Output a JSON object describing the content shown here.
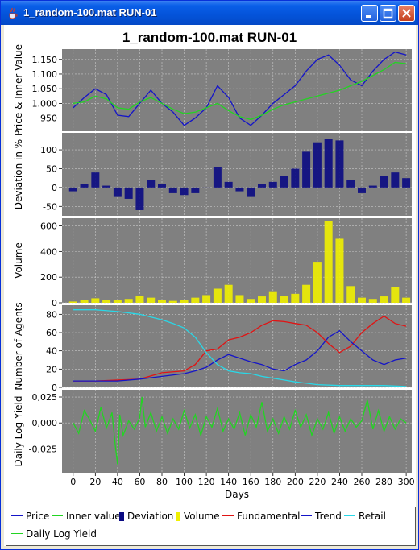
{
  "window": {
    "title": "1_random-100.mat RUN-01",
    "buttons": {
      "minimize": "minimize",
      "maximize": "maximize",
      "close": "close"
    }
  },
  "legend": [
    {
      "label": "Price",
      "color": "#1414c8",
      "kind": "line"
    },
    {
      "label": "Inner value",
      "color": "#22d422",
      "kind": "line"
    },
    {
      "label": "Deviation",
      "color": "#0a0a82",
      "kind": "box"
    },
    {
      "label": "Volume",
      "color": "#f0f000",
      "kind": "box"
    },
    {
      "label": "Fundamental",
      "color": "#e01414",
      "kind": "line"
    },
    {
      "label": "Trend",
      "color": "#1414c8",
      "kind": "line"
    },
    {
      "label": "Retail",
      "color": "#28d8e8",
      "kind": "line"
    },
    {
      "label": "Daily Log Yield",
      "color": "#22d422",
      "kind": "line"
    }
  ],
  "chart_data": {
    "type": "line",
    "title": "1_random-100.mat RUN-01",
    "xlabel": "Days",
    "xlim": [
      -10,
      305
    ],
    "xticks": [
      0,
      20,
      40,
      60,
      80,
      100,
      120,
      140,
      160,
      180,
      200,
      220,
      240,
      260,
      280,
      300
    ],
    "plot_background": "#808080",
    "grid": true,
    "panels": [
      {
        "id": "price",
        "ylabel": "Price & Inner Value",
        "ylim": [
          905,
          1185
        ],
        "yticks": [
          950,
          1000,
          1050,
          1100,
          1150
        ],
        "ytick_labels": [
          "950",
          "1.000",
          "1.050",
          "1.100",
          "1.150"
        ],
        "series": [
          {
            "name": "Price",
            "type": "line",
            "color": "#1414c8",
            "x": [
              0,
              10,
              20,
              30,
              40,
              50,
              60,
              70,
              80,
              90,
              100,
              110,
              120,
              130,
              140,
              150,
              160,
              170,
              180,
              190,
              200,
              210,
              220,
              230,
              240,
              250,
              260,
              270,
              280,
              290,
              300
            ],
            "y": [
              985,
              1020,
              1050,
              1030,
              960,
              955,
              1000,
              1045,
              1000,
              970,
              925,
              950,
              985,
              1060,
              1020,
              950,
              925,
              960,
              1000,
              1030,
              1060,
              1110,
              1150,
              1165,
              1130,
              1080,
              1060,
              1110,
              1150,
              1175,
              1165
            ]
          },
          {
            "name": "Inner value",
            "type": "line",
            "color": "#22d422",
            "x": [
              0,
              10,
              20,
              30,
              40,
              50,
              60,
              70,
              80,
              90,
              100,
              110,
              120,
              130,
              140,
              150,
              160,
              170,
              180,
              190,
              200,
              210,
              220,
              230,
              240,
              250,
              260,
              270,
              280,
              290,
              300
            ],
            "y": [
              1000,
              1005,
              1025,
              1015,
              985,
              980,
              1005,
              1020,
              1000,
              980,
              965,
              970,
              985,
              1000,
              975,
              955,
              945,
              960,
              980,
              995,
              1005,
              1015,
              1025,
              1035,
              1045,
              1060,
              1075,
              1095,
              1115,
              1140,
              1135
            ]
          }
        ]
      },
      {
        "id": "deviation",
        "ylabel": "Deviation in %",
        "ylim": [
          -75,
          145
        ],
        "yticks": [
          -50,
          0,
          50,
          100
        ],
        "ytick_labels": [
          "-50",
          "0",
          "50",
          "100"
        ],
        "series": [
          {
            "name": "Deviation",
            "type": "bar",
            "color": "#0a0a82",
            "x": [
              0,
              10,
              20,
              30,
              40,
              50,
              60,
              70,
              80,
              90,
              100,
              110,
              120,
              130,
              140,
              150,
              160,
              170,
              180,
              190,
              200,
              210,
              220,
              230,
              240,
              250,
              260,
              270,
              280,
              290,
              300
            ],
            "y": [
              -10,
              10,
              40,
              5,
              -25,
              -30,
              -60,
              20,
              10,
              -15,
              -20,
              -15,
              0,
              55,
              15,
              -10,
              -25,
              10,
              15,
              30,
              50,
              95,
              120,
              130,
              125,
              20,
              -15,
              5,
              30,
              40,
              25
            ]
          }
        ]
      },
      {
        "id": "volume",
        "ylabel": "Volume",
        "ylim": [
          0,
          660
        ],
        "yticks": [
          0,
          200,
          400,
          600
        ],
        "ytick_labels": [
          "0",
          "200",
          "400",
          "600"
        ],
        "series": [
          {
            "name": "Volume",
            "type": "bar",
            "color": "#f0f000",
            "x": [
              0,
              10,
              20,
              30,
              40,
              50,
              60,
              70,
              80,
              90,
              100,
              110,
              120,
              130,
              140,
              150,
              160,
              170,
              180,
              190,
              200,
              210,
              220,
              230,
              240,
              250,
              260,
              270,
              280,
              290,
              300
            ],
            "y": [
              10,
              20,
              35,
              25,
              20,
              30,
              55,
              40,
              20,
              15,
              25,
              40,
              60,
              110,
              140,
              60,
              30,
              50,
              90,
              55,
              70,
              140,
              320,
              640,
              500,
              130,
              40,
              30,
              50,
              120,
              40
            ]
          }
        ]
      },
      {
        "id": "agents",
        "ylabel": "Number of Agents",
        "ylim": [
          0,
          90
        ],
        "yticks": [
          0,
          20,
          40,
          60,
          80
        ],
        "ytick_labels": [
          "0",
          "20",
          "40",
          "60",
          "80"
        ],
        "series": [
          {
            "name": "Fundamental",
            "type": "line",
            "color": "#e01414",
            "x": [
              0,
              20,
              40,
              60,
              80,
              100,
              110,
              120,
              130,
              140,
              150,
              160,
              170,
              180,
              190,
              200,
              210,
              220,
              230,
              240,
              250,
              260,
              270,
              280,
              290,
              300
            ],
            "y": [
              7,
              7,
              8,
              9,
              16,
              18,
              25,
              40,
              42,
              52,
              55,
              60,
              68,
              73,
              72,
              70,
              68,
              60,
              48,
              38,
              45,
              60,
              70,
              78,
              70,
              67
            ]
          },
          {
            "name": "Trend",
            "type": "line",
            "color": "#1414c8",
            "x": [
              0,
              20,
              40,
              60,
              80,
              100,
              110,
              120,
              130,
              140,
              150,
              160,
              170,
              180,
              190,
              200,
              210,
              220,
              230,
              240,
              250,
              260,
              270,
              280,
              290,
              300
            ],
            "y": [
              7,
              7,
              7,
              9,
              12,
              15,
              18,
              22,
              30,
              36,
              32,
              28,
              25,
              20,
              18,
              25,
              30,
              40,
              55,
              62,
              50,
              40,
              30,
              25,
              30,
              32
            ]
          },
          {
            "name": "Retail",
            "type": "line",
            "color": "#28d8e8",
            "x": [
              0,
              20,
              40,
              60,
              80,
              90,
              100,
              110,
              120,
              130,
              140,
              150,
              160,
              170,
              180,
              190,
              200,
              220,
              240,
              260,
              280,
              300
            ],
            "y": [
              85,
              85,
              83,
              80,
              74,
              70,
              65,
              55,
              38,
              25,
              18,
              16,
              15,
              12,
              10,
              8,
              6,
              3,
              2,
              2,
              2,
              1
            ]
          }
        ]
      },
      {
        "id": "yield",
        "ylabel": "Daily Log Yield",
        "ylim": [
          -0.048,
          0.032
        ],
        "yticks": [
          -0.025,
          0,
          0.025
        ],
        "ytick_labels": [
          "-0,025",
          "0,000",
          "0,025"
        ],
        "series": [
          {
            "name": "Daily Log Yield",
            "type": "line",
            "color": "#22d422",
            "x": [
              0,
              5,
              10,
              15,
              20,
              25,
              30,
              35,
              38,
              40,
              42,
              45,
              50,
              55,
              60,
              62,
              65,
              70,
              75,
              80,
              85,
              90,
              95,
              100,
              105,
              110,
              115,
              120,
              125,
              130,
              135,
              140,
              145,
              150,
              155,
              160,
              165,
              170,
              175,
              180,
              185,
              190,
              195,
              200,
              205,
              210,
              215,
              220,
              225,
              230,
              235,
              240,
              245,
              250,
              255,
              260,
              265,
              270,
              275,
              280,
              285,
              290,
              295,
              300
            ],
            "y": [
              0,
              -0.01,
              0.012,
              0.003,
              -0.008,
              0.015,
              -0.005,
              0.01,
              -0.022,
              -0.04,
              0.008,
              -0.012,
              0.002,
              -0.006,
              0.005,
              0.025,
              -0.004,
              0.01,
              -0.008,
              0.006,
              -0.01,
              0.004,
              -0.006,
              0.012,
              -0.005,
              0.008,
              -0.012,
              0.006,
              -0.004,
              0.014,
              -0.008,
              0.004,
              -0.006,
              0.01,
              -0.012,
              0.008,
              -0.004,
              0.02,
              -0.008,
              0.004,
              -0.01,
              0.006,
              -0.006,
              0.012,
              -0.004,
              0.008,
              -0.012,
              0.004,
              -0.006,
              0.01,
              -0.01,
              0.006,
              -0.008,
              0.004,
              -0.004,
              0.002,
              0.022,
              -0.006,
              0.012,
              -0.008,
              0.006,
              -0.006,
              0.004,
              0
            ]
          }
        ]
      }
    ]
  }
}
